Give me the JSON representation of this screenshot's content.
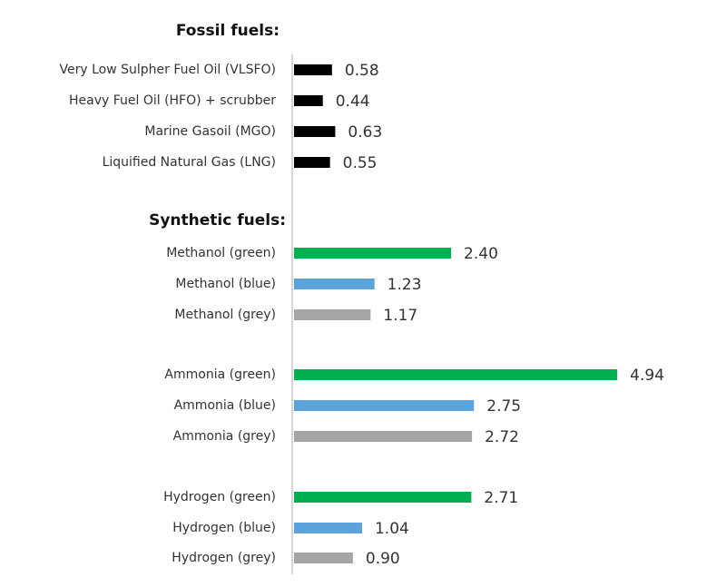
{
  "colors": {
    "fossil": "#000000",
    "green": "#00b050",
    "blue": "#5ba3db",
    "grey": "#a6a6a6",
    "axis": "#c8c8c8"
  },
  "chart_data": {
    "type": "bar",
    "orientation": "horizontal",
    "xlim": [
      0,
      5
    ],
    "grid": false,
    "legend": "none",
    "groups": [
      {
        "title": "Fossil fuels:",
        "items": [
          {
            "label": "Very Low Sulpher Fuel Oil (VLSFO)",
            "value": 0.58,
            "value_text": "0.58",
            "color_key": "fossil"
          },
          {
            "label": "Heavy Fuel Oil (HFO) + scrubber",
            "value": 0.44,
            "value_text": "0.44",
            "color_key": "fossil"
          },
          {
            "label": "Marine Gasoil (MGO)",
            "value": 0.63,
            "value_text": "0.63",
            "color_key": "fossil"
          },
          {
            "label": "Liquified Natural Gas (LNG)",
            "value": 0.55,
            "value_text": "0.55",
            "color_key": "fossil"
          }
        ]
      },
      {
        "title": "Synthetic fuels:",
        "items": [
          {
            "label": "Methanol (green)",
            "value": 2.4,
            "value_text": "2.40",
            "color_key": "green"
          },
          {
            "label": "Methanol (blue)",
            "value": 1.23,
            "value_text": "1.23",
            "color_key": "blue"
          },
          {
            "label": "Methanol (grey)",
            "value": 1.17,
            "value_text": "1.17",
            "color_key": "grey"
          },
          {
            "label": "Ammonia (green)",
            "value": 4.94,
            "value_text": "4.94",
            "color_key": "green"
          },
          {
            "label": "Ammonia (blue)",
            "value": 2.75,
            "value_text": "2.75",
            "color_key": "blue"
          },
          {
            "label": "Ammonia (grey)",
            "value": 2.72,
            "value_text": "2.72",
            "color_key": "grey"
          },
          {
            "label": "Hydrogen (green)",
            "value": 2.71,
            "value_text": "2.71",
            "color_key": "green"
          },
          {
            "label": "Hydrogen (blue)",
            "value": 1.04,
            "value_text": "1.04",
            "color_key": "blue"
          },
          {
            "label": "Hydrogen (grey)",
            "value": 0.9,
            "value_text": "0.90",
            "color_key": "grey"
          }
        ]
      }
    ]
  }
}
